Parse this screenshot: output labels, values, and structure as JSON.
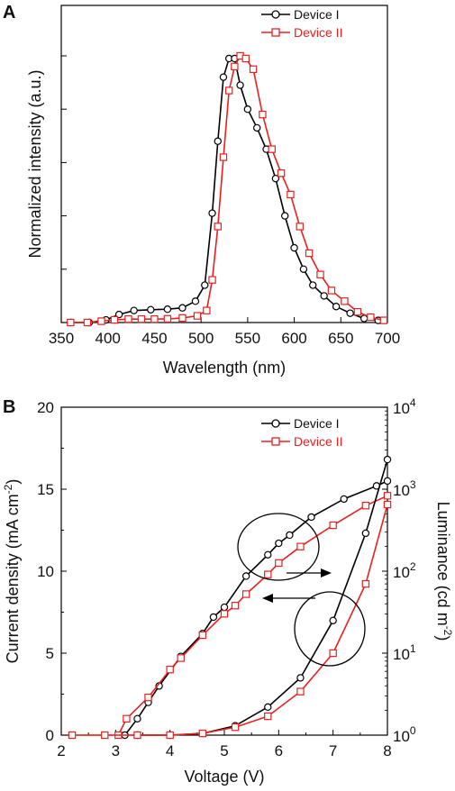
{
  "chart_data": [
    {
      "panel_label": "A",
      "type": "line",
      "xlabel": "Wavelength (nm)",
      "ylabel": "Normalized intensity (a.u.)",
      "xlim": [
        350,
        700
      ],
      "ylim": [
        0,
        1.0
      ],
      "xticks": [
        "350",
        "400",
        "450",
        "500",
        "550",
        "600",
        "650",
        "700"
      ],
      "legend_position": "top-right",
      "series": [
        {
          "name": "Device I",
          "color": "#000000",
          "marker": "circle",
          "x": [
            360,
            380,
            398,
            412,
            428,
            446,
            464,
            480,
            494,
            504,
            512,
            518,
            524,
            530,
            536,
            542,
            550,
            560,
            570,
            580,
            590,
            600,
            610,
            620,
            632,
            645,
            660,
            675,
            690
          ],
          "y": [
            0.0,
            0.0,
            0.01,
            0.03,
            0.045,
            0.048,
            0.05,
            0.055,
            0.08,
            0.14,
            0.41,
            0.68,
            0.92,
            0.99,
            0.99,
            0.89,
            0.8,
            0.73,
            0.65,
            0.54,
            0.4,
            0.28,
            0.2,
            0.14,
            0.1,
            0.06,
            0.035,
            0.015,
            0.008
          ]
        },
        {
          "name": "Device II",
          "color": "#e8201f",
          "marker": "square",
          "x": [
            360,
            378,
            393,
            407,
            422,
            436,
            450,
            464,
            480,
            496,
            506,
            512,
            518,
            524,
            530,
            536,
            542,
            548,
            556,
            566,
            576,
            586,
            596,
            606,
            616,
            628,
            640,
            654,
            668,
            682,
            696
          ],
          "y": [
            0.0,
            0.0,
            0.005,
            0.01,
            0.013,
            0.013,
            0.013,
            0.014,
            0.017,
            0.025,
            0.045,
            0.16,
            0.36,
            0.62,
            0.87,
            0.96,
            1.0,
            0.99,
            0.95,
            0.78,
            0.65,
            0.56,
            0.48,
            0.36,
            0.26,
            0.18,
            0.12,
            0.08,
            0.04,
            0.02,
            0.008
          ]
        }
      ]
    },
    {
      "panel_label": "B",
      "type": "line",
      "xlabel": "Voltage (V)",
      "ylabel_left": "Current density (mA cm",
      "ylabel_left_sup": "-2",
      "ylabel_left_close": ")",
      "ylabel_right": "Luminance (cd m",
      "ylabel_right_sup": "-2",
      "ylabel_right_close": ")",
      "xlim": [
        2,
        8
      ],
      "ylim_left": [
        0,
        20
      ],
      "ylim_right_log10": [
        0,
        4
      ],
      "xticks": [
        "2",
        "3",
        "4",
        "5",
        "6",
        "7",
        "8"
      ],
      "yticks_left": [
        "0",
        "5",
        "10",
        "15",
        "20"
      ],
      "yticks_right": [
        {
          "base": "10",
          "exp": "0"
        },
        {
          "base": "10",
          "exp": "1"
        },
        {
          "base": "10",
          "exp": "2"
        },
        {
          "base": "10",
          "exp": "3"
        },
        {
          "base": "10",
          "exp": "4"
        }
      ],
      "legend_position": "top-right",
      "current_density": [
        {
          "name": "Device I",
          "color": "#000000",
          "marker": "circle",
          "x": [
            3.17,
            3.4,
            3.6,
            3.8,
            4.2,
            4.6,
            4.8,
            5.0,
            5.4,
            5.8,
            6.0,
            6.2,
            6.6,
            7.2,
            7.8,
            8.0
          ],
          "y": [
            0.0,
            1.0,
            2.0,
            3.0,
            4.8,
            6.2,
            7.2,
            7.8,
            9.7,
            11.0,
            11.7,
            12.2,
            13.3,
            14.4,
            15.2,
            15.5
          ]
        },
        {
          "name": "Device II",
          "color": "#e8201f",
          "marker": "square",
          "x": [
            3.05,
            3.2,
            3.6,
            4.0,
            4.2,
            4.6,
            5.0,
            5.2,
            5.4,
            5.8,
            6.0,
            6.4,
            7.0,
            7.6,
            8.0
          ],
          "y": [
            0.0,
            1.0,
            2.3,
            4.0,
            4.7,
            6.1,
            7.4,
            7.9,
            8.6,
            9.8,
            10.5,
            11.5,
            12.8,
            14.0,
            14.6
          ]
        }
      ],
      "luminance": [
        {
          "name": "Device I",
          "color": "#000000",
          "marker": "circle",
          "x": [
            3.4,
            4.0,
            4.6,
            5.2,
            5.8,
            6.4,
            7.0,
            7.6,
            8.0
          ],
          "y": [
            1.0,
            1.0,
            1.05,
            1.3,
            2.2,
            5.0,
            25,
            290,
            2300
          ]
        },
        {
          "name": "Device II",
          "color": "#e8201f",
          "marker": "square",
          "x": [
            2.2,
            2.8,
            3.4,
            4.0,
            4.6,
            5.2,
            5.8,
            6.4,
            7.0,
            7.6,
            8.0
          ],
          "y": [
            1.0,
            1.0,
            1.0,
            1.0,
            1.05,
            1.25,
            1.7,
            3.4,
            10,
            70,
            650
          ]
        }
      ]
    }
  ]
}
